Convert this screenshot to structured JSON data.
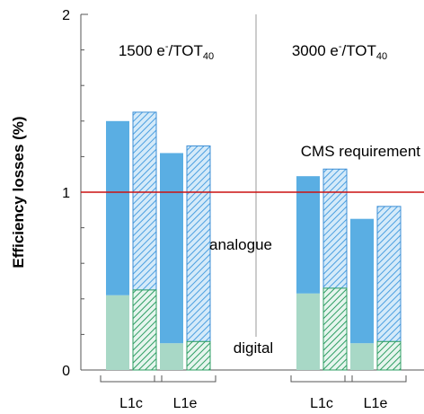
{
  "chart_data": {
    "type": "bar",
    "ylabel": "Efficiency losses (%)",
    "ylim": [
      0,
      2
    ],
    "yticks": [
      0,
      1,
      2
    ],
    "y_tick_labels": [
      "0",
      "1",
      "2"
    ],
    "grid": false,
    "stacked": true,
    "panels": [
      {
        "title": {
          "main": "1500 e",
          "sup": "-",
          "mid": "/TOT",
          "sub": "40"
        },
        "groups": [
          {
            "label": "L1c",
            "bars": [
              {
                "pattern": "solid",
                "digital": 0.42,
                "total": 1.4
              },
              {
                "pattern": "hatched",
                "digital": 0.45,
                "total": 1.45
              }
            ]
          },
          {
            "label": "L1e",
            "bars": [
              {
                "pattern": "solid",
                "digital": 0.15,
                "total": 1.22
              },
              {
                "pattern": "hatched",
                "digital": 0.16,
                "total": 1.26
              }
            ]
          }
        ]
      },
      {
        "title": {
          "main": "3000 e",
          "sup": "-",
          "mid": "/TOT",
          "sub": "40"
        },
        "groups": [
          {
            "label": "L1c",
            "bars": [
              {
                "pattern": "solid",
                "digital": 0.43,
                "total": 1.09
              },
              {
                "pattern": "hatched",
                "digital": 0.46,
                "total": 1.13
              }
            ]
          },
          {
            "label": "L1e",
            "bars": [
              {
                "pattern": "solid",
                "digital": 0.15,
                "total": 0.85
              },
              {
                "pattern": "hatched",
                "digital": 0.16,
                "total": 0.92
              }
            ]
          }
        ]
      }
    ],
    "components": [
      {
        "name": "digital",
        "color": "#a8d8c6",
        "stroke": "#2e9e63"
      },
      {
        "name": "analogue",
        "color": "#5aaee3",
        "stroke": "#3d8fd6"
      }
    ],
    "component_labels": {
      "analogue": {
        "text": "analogue",
        "color": "#3d8fd6"
      },
      "digital": {
        "text": "digital",
        "color": "#2e9e63"
      }
    },
    "reference_line": {
      "value": 1.0,
      "label": "CMS requirement",
      "color": "#cc1111"
    }
  }
}
